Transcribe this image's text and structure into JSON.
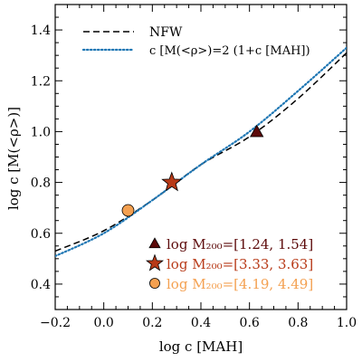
{
  "chart_data": {
    "type": "line",
    "xlabel": "log c [MAH]",
    "ylabel": "log c [M(<ρ>)]",
    "xlim": [
      -0.2,
      1.0
    ],
    "ylim": [
      0.3,
      1.5
    ],
    "x_ticks": [
      -0.2,
      0.0,
      0.2,
      0.4,
      0.6,
      0.8,
      1.0
    ],
    "x_tick_labels": [
      "−0.2",
      "0.0",
      "0.2",
      "0.4",
      "0.6",
      "0.8",
      "1.0"
    ],
    "y_ticks": [
      0.4,
      0.6,
      0.8,
      1.0,
      1.2,
      1.4
    ],
    "y_tick_labels": [
      "0.4",
      "0.6",
      "0.8",
      "1.0",
      "1.2",
      "1.4"
    ],
    "grid": false,
    "legend_lines_position": "top-left",
    "legend_markers_position": "bottom-right",
    "series": [
      {
        "name": "NFW",
        "style": "dashed",
        "color": "#000000",
        "x": [
          -0.2,
          0.0,
          0.2,
          0.4,
          0.6,
          0.8,
          1.0
        ],
        "y": [
          0.53,
          0.61,
          0.73,
          0.87,
          0.98,
          1.13,
          1.31
        ]
      },
      {
        "name": "c [M(<ρ>)=2 (1+c [MAH])",
        "style": "dotted",
        "color": "#1f77b4",
        "x": [
          -0.2,
          0.0,
          0.2,
          0.4,
          0.6,
          0.8,
          1.0
        ],
        "y": [
          0.51,
          0.6,
          0.73,
          0.87,
          1.0,
          1.16,
          1.33
        ]
      }
    ],
    "points": [
      {
        "label": "log M₂₀₀=[1.24, 1.54]",
        "marker": "triangle",
        "color": "#5c0a0a",
        "x": 0.63,
        "y": 1.0
      },
      {
        "label": "log M₂₀₀=[3.33, 3.63]",
        "marker": "star",
        "color": "#b83a18",
        "x": 0.28,
        "y": 0.8
      },
      {
        "label": "log M₂₀₀=[4.19, 4.49]",
        "marker": "circle",
        "color": "#f4a050",
        "x": 0.1,
        "y": 0.69
      }
    ]
  }
}
